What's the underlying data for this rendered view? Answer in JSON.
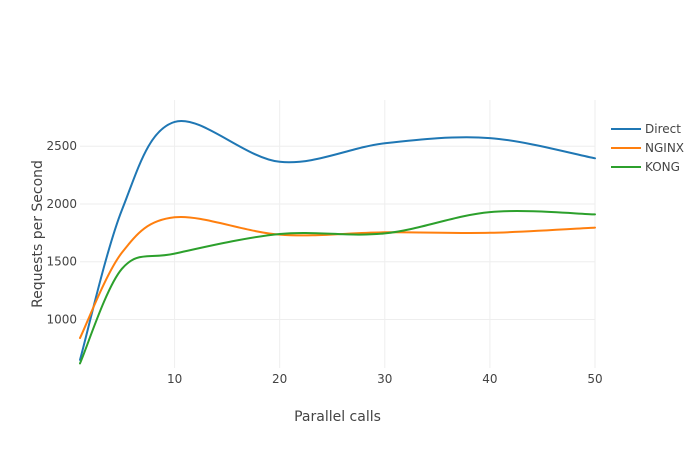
{
  "chart_data": {
    "type": "line",
    "xlabel": "Parallel calls",
    "ylabel": "Requests per Second",
    "xlim": [
      1,
      50
    ],
    "ylim": [
      580,
      2900
    ],
    "x_ticks": [
      10,
      20,
      30,
      40,
      50
    ],
    "y_ticks": [
      1000,
      1500,
      2000,
      2500
    ],
    "grid": true,
    "legend_position": "top-right",
    "series": [
      {
        "name": "Direct",
        "color": "#1f77b4",
        "x": [
          1,
          5,
          10,
          20,
          30,
          40,
          50
        ],
        "y": [
          650,
          1950,
          2710,
          2365,
          2525,
          2570,
          2395
        ]
      },
      {
        "name": "NGINX",
        "color": "#ff7f0e",
        "x": [
          1,
          5,
          10,
          20,
          30,
          40,
          50
        ],
        "y": [
          840,
          1580,
          1885,
          1735,
          1755,
          1750,
          1795
        ]
      },
      {
        "name": "KONG",
        "color": "#2ca02c",
        "x": [
          1,
          5,
          10,
          20,
          30,
          40,
          50
        ],
        "y": [
          620,
          1440,
          1570,
          1740,
          1745,
          1930,
          1910
        ]
      }
    ]
  }
}
